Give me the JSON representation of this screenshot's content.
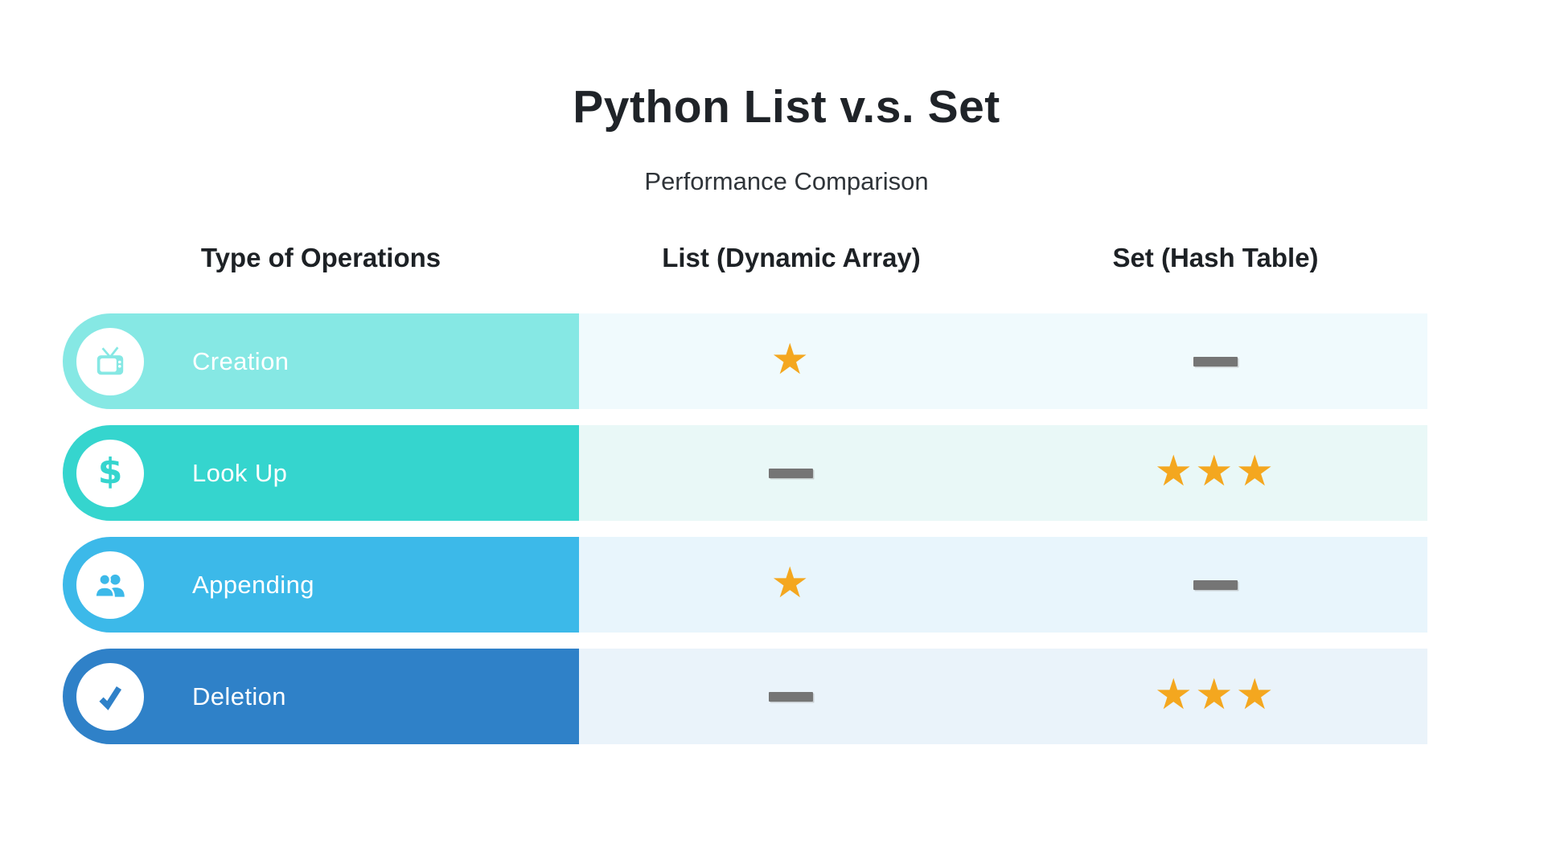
{
  "title": "Python List v.s. Set",
  "subtitle": "Performance Comparison",
  "chart_data": {
    "type": "table",
    "title": "Python List v.s. Set",
    "subtitle": "Performance Comparison",
    "columns": [
      "Type of Operations",
      "List (Dynamic Array)",
      "Set (Hash Table)"
    ],
    "rating": {
      "star_symbol": "★",
      "star_color": "#F4A71F",
      "dash_color": "#757575",
      "scale_max": 3
    },
    "rows": [
      {
        "operation": "Creation",
        "icon": "tv-icon",
        "pill_color": "#86E8E4",
        "band_color": "#F0FAFD",
        "list_stars": 1,
        "set_stars": 0
      },
      {
        "operation": "Look Up",
        "icon": "dollar-icon",
        "pill_color": "#35D5CE",
        "band_color": "#E9F8F7",
        "list_stars": 0,
        "set_stars": 3
      },
      {
        "operation": "Appending",
        "icon": "people-icon",
        "pill_color": "#3CB9E9",
        "band_color": "#E8F5FC",
        "list_stars": 1,
        "set_stars": 0
      },
      {
        "operation": "Deletion",
        "icon": "check-icon",
        "pill_color": "#2F81C8",
        "band_color": "#EAF3FA",
        "list_stars": 0,
        "set_stars": 3
      }
    ]
  }
}
